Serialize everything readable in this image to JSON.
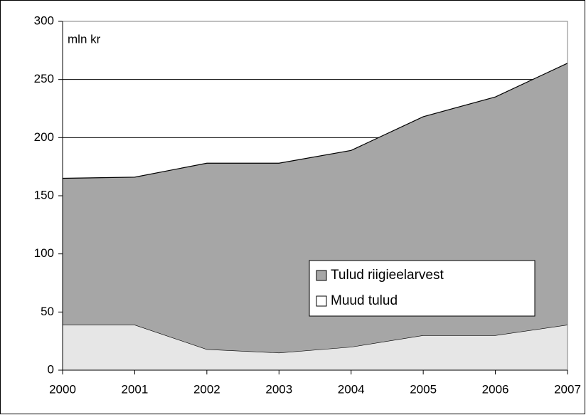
{
  "chart_data": {
    "type": "area",
    "stacked": true,
    "annotation": "mln kr",
    "x": [
      2000,
      2001,
      2002,
      2003,
      2004,
      2005,
      2006,
      2007
    ],
    "xlim": [
      2000,
      2007
    ],
    "xticks": [
      2000,
      2001,
      2002,
      2003,
      2004,
      2005,
      2006,
      2007
    ],
    "ylim": [
      0,
      300
    ],
    "yticks": [
      0,
      50,
      100,
      150,
      200,
      250,
      300
    ],
    "grid": true,
    "legend": "lower right",
    "series": [
      {
        "name": "Muud tulud",
        "color": "#e6e6e6",
        "values": [
          39,
          39,
          18,
          15,
          20,
          30,
          30,
          39
        ]
      },
      {
        "name": "Tulud riigieelarvest",
        "color": "#a6a6a6",
        "values": [
          126,
          127,
          160,
          163,
          169,
          188,
          205,
          225
        ]
      }
    ]
  }
}
